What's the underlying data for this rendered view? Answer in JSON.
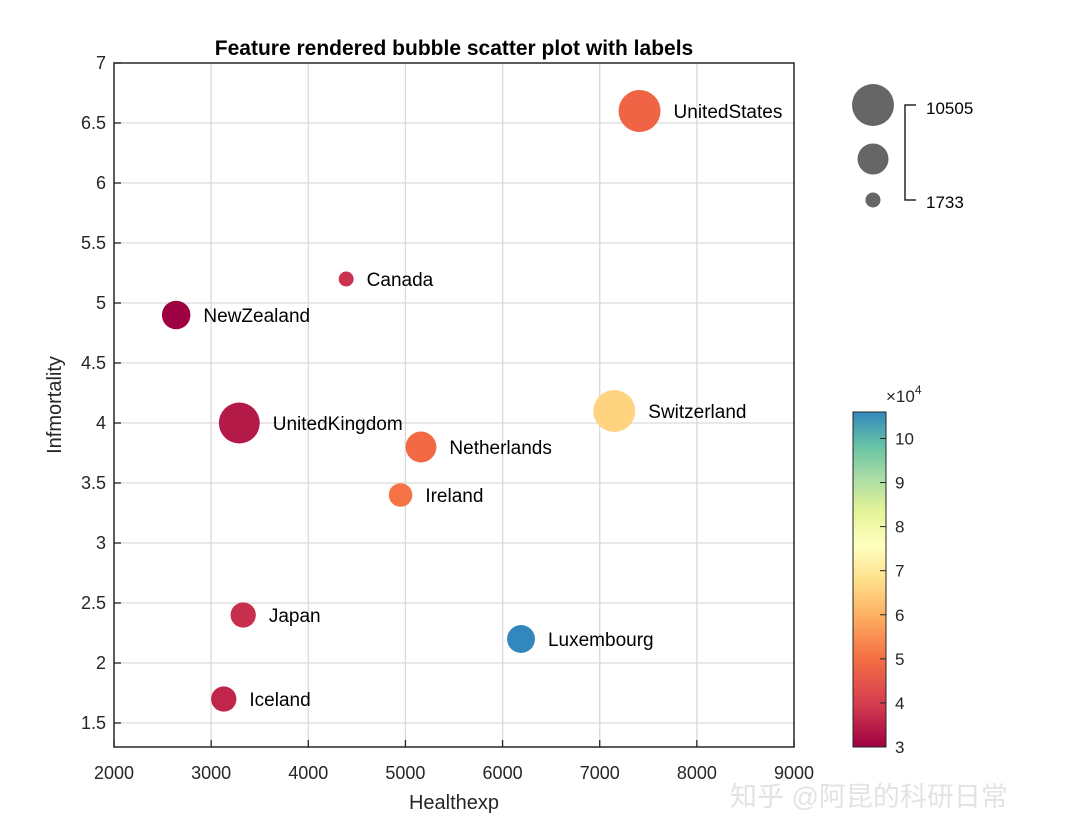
{
  "chart_data": {
    "type": "scatter",
    "title": "Feature rendered bubble scatter plot with labels",
    "xlabel": "Healthexp",
    "ylabel": "Infmortality",
    "xlim": [
      2000,
      9000
    ],
    "ylim": [
      1.3,
      7
    ],
    "xticks": [
      2000,
      3000,
      4000,
      5000,
      6000,
      7000,
      8000,
      9000
    ],
    "yticks": [
      1.5,
      2,
      2.5,
      3,
      3.5,
      4,
      4.5,
      5,
      5.5,
      6,
      6.5,
      7
    ],
    "grid": true,
    "points": [
      {
        "label": "UnitedStates",
        "x": 7410,
        "y": 6.6,
        "size": 10505,
        "color_value": 47800
      },
      {
        "label": "Canada",
        "x": 4390,
        "y": 5.2,
        "size": 1733,
        "color_value": 38000
      },
      {
        "label": "NewZealand",
        "x": 2640,
        "y": 4.9,
        "size": 5200,
        "color_value": 30000
      },
      {
        "label": "Switzerland",
        "x": 7150,
        "y": 4.1,
        "size": 10500,
        "color_value": 66000
      },
      {
        "label": "UnitedKingdom",
        "x": 3290,
        "y": 4.0,
        "size": 10000,
        "color_value": 34000
      },
      {
        "label": "Netherlands",
        "x": 5160,
        "y": 3.8,
        "size": 6000,
        "color_value": 49000
      },
      {
        "label": "Ireland",
        "x": 4950,
        "y": 3.4,
        "size": 3700,
        "color_value": 50500
      },
      {
        "label": "Japan",
        "x": 3330,
        "y": 2.4,
        "size": 4200,
        "color_value": 37500
      },
      {
        "label": "Luxembourg",
        "x": 6190,
        "y": 2.2,
        "size": 5000,
        "color_value": 106000
      },
      {
        "label": "Iceland",
        "x": 3130,
        "y": 1.7,
        "size": 4200,
        "color_value": 36000
      }
    ],
    "size_legend": {
      "max_label": "10505",
      "min_label": "1733"
    },
    "colorbar": {
      "exponent_label": "×10",
      "exponent_power": "4",
      "range": [
        3,
        10.6
      ],
      "ticks": [
        "3",
        "4",
        "5",
        "6",
        "7",
        "8",
        "9",
        "10"
      ]
    }
  },
  "watermark": "知乎 @阿昆的科研日常"
}
